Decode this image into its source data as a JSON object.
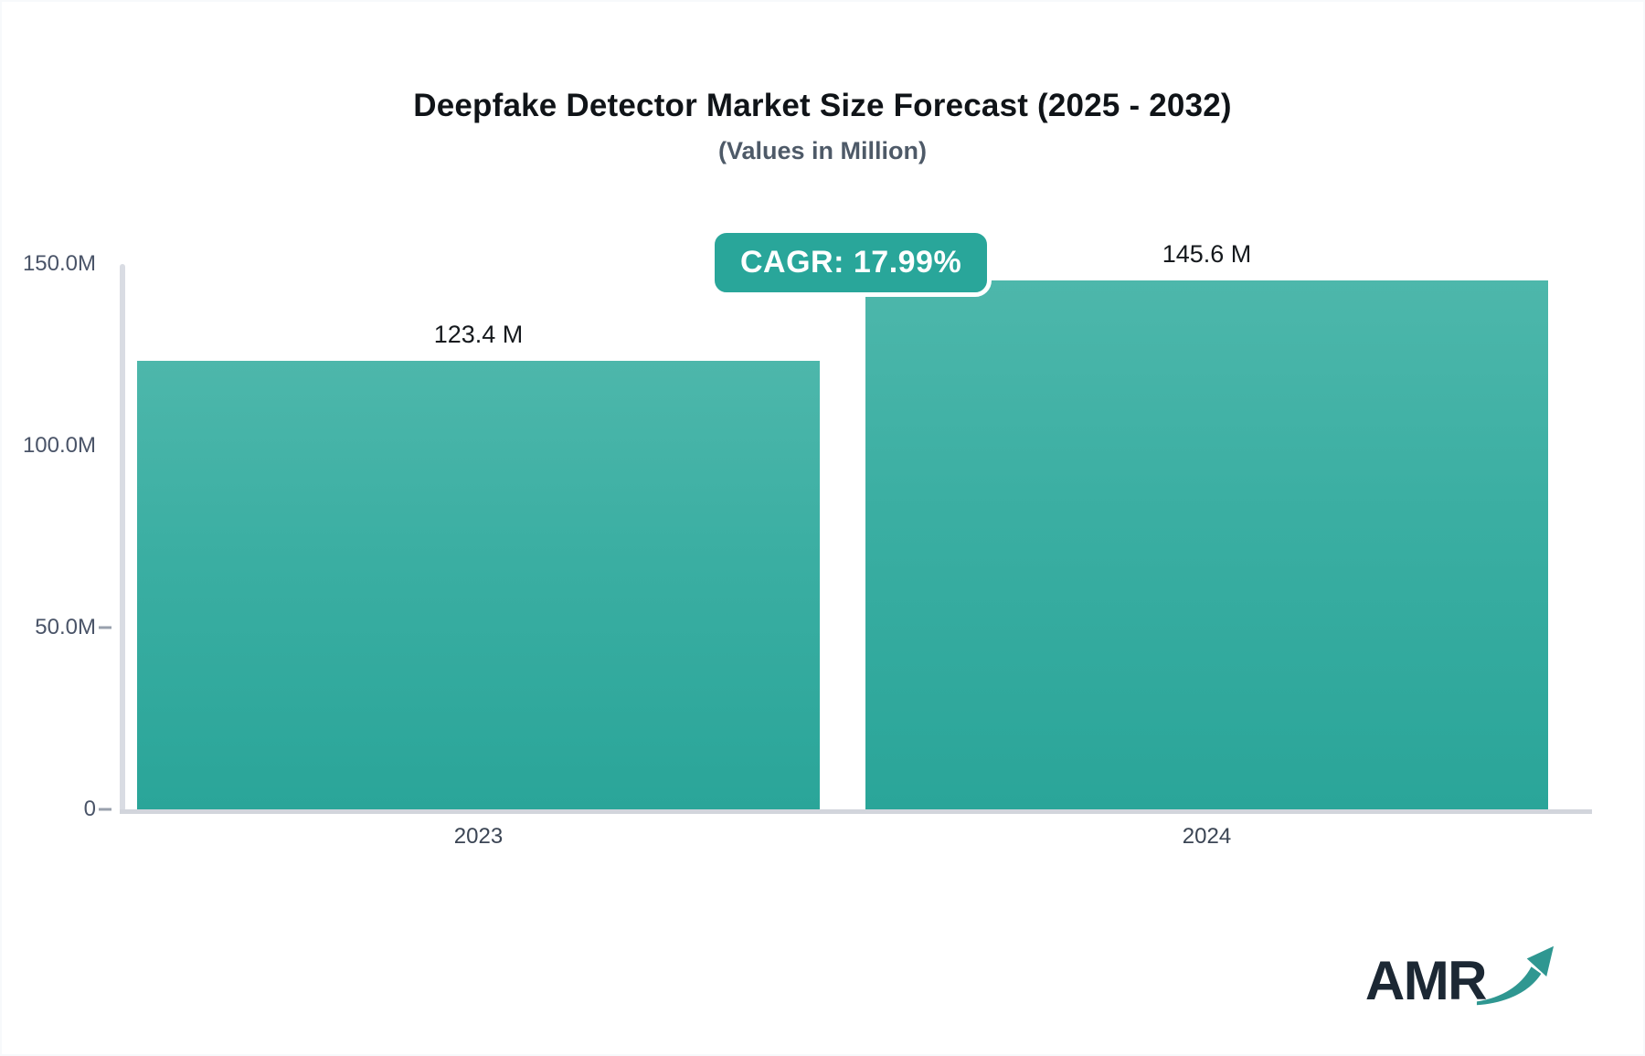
{
  "title": "Deepfake Detector Market Size Forecast (2025 - 2032)",
  "subtitle": "(Values in Million)",
  "cagr_badge": "CAGR: 17.99%",
  "logo": {
    "text": "AMR"
  },
  "colors": {
    "bar_gradient_top": "#4db7ab",
    "bar_gradient_bottom": "#2aa599",
    "badge_background": "#29a69a",
    "badge_text": "#ffffff",
    "axis_line": "#d9dce3",
    "tick_label": "#4a5468",
    "category_label": "#3b4554",
    "title_text": "#101418",
    "subtitle_text": "#4e5a68",
    "logo_text": "#1c2834",
    "logo_arrow": "#2f9791"
  },
  "chart_data": {
    "type": "bar",
    "categories": [
      "2023",
      "2024"
    ],
    "values": [
      123.4,
      145.6
    ],
    "value_labels": [
      "123.4 M",
      "145.6 M"
    ],
    "title": "Deepfake Detector Market Size Forecast (2025 - 2032)",
    "subtitle": "(Values in Million)",
    "xlabel": "",
    "ylabel": "",
    "ylim": [
      0,
      150
    ],
    "yticks": [
      {
        "label": "150.0M",
        "value": 150,
        "tick_dash": false
      },
      {
        "label": "100.0M",
        "value": 100,
        "tick_dash": false
      },
      {
        "label": "50.0M",
        "value": 50,
        "tick_dash": true
      },
      {
        "label": "0",
        "value": 0,
        "tick_dash": true
      }
    ],
    "grid": false,
    "legend": false,
    "annotations": [
      "CAGR: 17.99%"
    ]
  }
}
